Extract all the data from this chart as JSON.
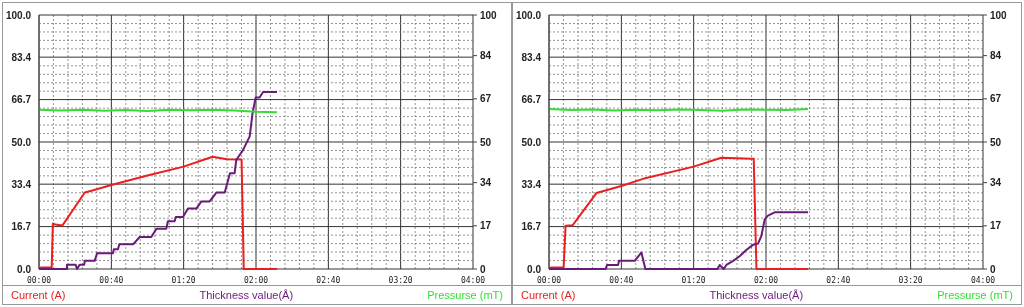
{
  "chart_data": [
    {
      "type": "line",
      "grid": true,
      "legend": "bottom",
      "line_style": "solid",
      "marker": "none",
      "xlim": [
        0,
        4
      ],
      "xticks": [
        {
          "value": 0,
          "label": "00:00"
        },
        {
          "value": 0.133,
          "label": null
        },
        {
          "value": 0.267,
          "label": null
        },
        {
          "value": 0.4,
          "label": null
        },
        {
          "value": 0.533,
          "label": null
        },
        {
          "value": 0.667,
          "label": "00:40"
        },
        {
          "value": 0.8,
          "label": null
        },
        {
          "value": 0.933,
          "label": null
        },
        {
          "value": 1.067,
          "label": null
        },
        {
          "value": 1.2,
          "label": null
        },
        {
          "value": 1.333,
          "label": "01:20"
        },
        {
          "value": 1.467,
          "label": null
        },
        {
          "value": 1.6,
          "label": null
        },
        {
          "value": 1.733,
          "label": null
        },
        {
          "value": 1.867,
          "label": null
        },
        {
          "value": 2,
          "label": "02:00"
        },
        {
          "value": 2.133,
          "label": null
        },
        {
          "value": 2.267,
          "label": null
        },
        {
          "value": 2.4,
          "label": null
        },
        {
          "value": 2.533,
          "label": null
        },
        {
          "value": 2.667,
          "label": "02:40"
        },
        {
          "value": 2.8,
          "label": null
        },
        {
          "value": 2.933,
          "label": null
        },
        {
          "value": 3.067,
          "label": null
        },
        {
          "value": 3.2,
          "label": null
        },
        {
          "value": 3.333,
          "label": "03:20"
        },
        {
          "value": 3.467,
          "label": null
        },
        {
          "value": 3.6,
          "label": null
        },
        {
          "value": 3.733,
          "label": null
        },
        {
          "value": 3.867,
          "label": null
        },
        {
          "value": 4,
          "label": "04:00"
        }
      ],
      "ylim": [
        0,
        100
      ],
      "yticks": [
        {
          "value": 0,
          "label": "0.0"
        },
        {
          "value": 3.33,
          "label": null
        },
        {
          "value": 6.67,
          "label": null
        },
        {
          "value": 10,
          "label": null
        },
        {
          "value": 13.33,
          "label": null
        },
        {
          "value": 16.7,
          "label": "16.7"
        },
        {
          "value": 20,
          "label": null
        },
        {
          "value": 23.33,
          "label": null
        },
        {
          "value": 26.67,
          "label": null
        },
        {
          "value": 30,
          "label": null
        },
        {
          "value": 33.4,
          "label": "33.4"
        },
        {
          "value": 36.67,
          "label": null
        },
        {
          "value": 40,
          "label": null
        },
        {
          "value": 43.33,
          "label": null
        },
        {
          "value": 46.67,
          "label": null
        },
        {
          "value": 50,
          "label": "50.0"
        },
        {
          "value": 53.33,
          "label": null
        },
        {
          "value": 56.67,
          "label": null
        },
        {
          "value": 60,
          "label": null
        },
        {
          "value": 63.33,
          "label": null
        },
        {
          "value": 66.7,
          "label": "66.7"
        },
        {
          "value": 70,
          "label": null
        },
        {
          "value": 73.33,
          "label": null
        },
        {
          "value": 76.67,
          "label": null
        },
        {
          "value": 80,
          "label": null
        },
        {
          "value": 83.4,
          "label": "83.4"
        },
        {
          "value": 86.67,
          "label": null
        },
        {
          "value": 90,
          "label": null
        },
        {
          "value": 93.33,
          "label": null
        },
        {
          "value": 96.67,
          "label": null
        },
        {
          "value": 100,
          "label": "100.0"
        }
      ],
      "y2lim": [
        0,
        100
      ],
      "y2ticks": [
        0,
        17,
        34,
        50,
        67,
        84,
        100
      ],
      "series": [
        {
          "name": "Current (A)",
          "color": "#e82020",
          "x": [
            0,
            0.017,
            0.117,
            0.128,
            0.15,
            0.215,
            0.422,
            0.5,
            0.667,
            1,
            1.333,
            1.6,
            1.733,
            1.867,
            1.887,
            2.193
          ],
          "values": [
            0,
            0.6,
            0.6,
            17.9,
            17.5,
            17.1,
            30.1,
            31,
            33.1,
            36.8,
            40.3,
            44.2,
            43.2,
            43.1,
            0,
            0
          ]
        },
        {
          "name": "Thickness value(Å)",
          "color": "#6a1b7a",
          "x": [
            0,
            0.258,
            0.258,
            0.338,
            0.35,
            0.375,
            0.417,
            0.422,
            0.513,
            0.535,
            0.682,
            0.69,
            0.728,
            0.74,
            0.867,
            0.928,
            1.035,
            1.082,
            1.173,
            1.188,
            1.25,
            1.26,
            1.327,
            1.373,
            1.45,
            1.497,
            1.573,
            1.635,
            1.712,
            1.76,
            1.803,
            1.818,
            1.88,
            1.942,
            1.967,
            1.997,
            2.033,
            2.065,
            2.193
          ],
          "values": [
            0,
            0,
            1.7,
            1.7,
            0,
            1.7,
            1.7,
            3.2,
            3.2,
            6.2,
            6.2,
            7.8,
            7.8,
            9.7,
            9.7,
            12.6,
            12.6,
            15.8,
            15.8,
            18.8,
            18.8,
            20.5,
            20.5,
            23.8,
            23.8,
            26.6,
            26.6,
            30.1,
            30.1,
            37.7,
            37.7,
            42.9,
            46.8,
            52.2,
            61,
            67.5,
            67.5,
            69.7,
            69.7
          ]
        },
        {
          "name": "Pressurse (mT)",
          "color": "#33dd33",
          "x": [
            0,
            0.2,
            0.4,
            0.6,
            0.8,
            1,
            1.2,
            1.4,
            1.6,
            1.8,
            2,
            2.193
          ],
          "values": [
            62.7,
            62.4,
            62.7,
            62.3,
            62.6,
            62.2,
            62.7,
            62.5,
            62.7,
            62.4,
            61.9,
            61.7
          ]
        }
      ]
    },
    {
      "type": "line",
      "grid": true,
      "legend": "bottom",
      "line_style": "solid",
      "marker": "none",
      "xlim": [
        0,
        4
      ],
      "xticks": [
        {
          "value": 0,
          "label": "00:00"
        },
        {
          "value": 0.133,
          "label": null
        },
        {
          "value": 0.267,
          "label": null
        },
        {
          "value": 0.4,
          "label": null
        },
        {
          "value": 0.533,
          "label": null
        },
        {
          "value": 0.667,
          "label": "00:40"
        },
        {
          "value": 0.8,
          "label": null
        },
        {
          "value": 0.933,
          "label": null
        },
        {
          "value": 1.067,
          "label": null
        },
        {
          "value": 1.2,
          "label": null
        },
        {
          "value": 1.333,
          "label": "01:20"
        },
        {
          "value": 1.467,
          "label": null
        },
        {
          "value": 1.6,
          "label": null
        },
        {
          "value": 1.733,
          "label": null
        },
        {
          "value": 1.867,
          "label": null
        },
        {
          "value": 2,
          "label": "02:00"
        },
        {
          "value": 2.133,
          "label": null
        },
        {
          "value": 2.267,
          "label": null
        },
        {
          "value": 2.4,
          "label": null
        },
        {
          "value": 2.533,
          "label": null
        },
        {
          "value": 2.667,
          "label": "02:40"
        },
        {
          "value": 2.8,
          "label": null
        },
        {
          "value": 2.933,
          "label": null
        },
        {
          "value": 3.067,
          "label": null
        },
        {
          "value": 3.2,
          "label": null
        },
        {
          "value": 3.333,
          "label": "03:20"
        },
        {
          "value": 3.467,
          "label": null
        },
        {
          "value": 3.6,
          "label": null
        },
        {
          "value": 3.733,
          "label": null
        },
        {
          "value": 3.867,
          "label": null
        },
        {
          "value": 4,
          "label": "04:00"
        }
      ],
      "ylim": [
        0,
        100
      ],
      "yticks": [
        {
          "value": 0,
          "label": "0.0"
        },
        {
          "value": 3.33,
          "label": null
        },
        {
          "value": 6.67,
          "label": null
        },
        {
          "value": 10,
          "label": null
        },
        {
          "value": 13.33,
          "label": null
        },
        {
          "value": 16.7,
          "label": "16.7"
        },
        {
          "value": 20,
          "label": null
        },
        {
          "value": 23.33,
          "label": null
        },
        {
          "value": 26.67,
          "label": null
        },
        {
          "value": 30,
          "label": null
        },
        {
          "value": 33.4,
          "label": "33.4"
        },
        {
          "value": 36.67,
          "label": null
        },
        {
          "value": 40,
          "label": null
        },
        {
          "value": 43.33,
          "label": null
        },
        {
          "value": 46.67,
          "label": null
        },
        {
          "value": 50,
          "label": "50.0"
        },
        {
          "value": 53.33,
          "label": null
        },
        {
          "value": 56.67,
          "label": null
        },
        {
          "value": 60,
          "label": null
        },
        {
          "value": 63.33,
          "label": null
        },
        {
          "value": 66.7,
          "label": "66.7"
        },
        {
          "value": 70,
          "label": null
        },
        {
          "value": 73.33,
          "label": null
        },
        {
          "value": 76.67,
          "label": null
        },
        {
          "value": 80,
          "label": null
        },
        {
          "value": 83.4,
          "label": "83.4"
        },
        {
          "value": 86.67,
          "label": null
        },
        {
          "value": 90,
          "label": null
        },
        {
          "value": 93.33,
          "label": null
        },
        {
          "value": 96.67,
          "label": null
        },
        {
          "value": 100,
          "label": "100.0"
        }
      ],
      "y2lim": [
        0,
        100
      ],
      "y2ticks": [
        0,
        17,
        34,
        50,
        67,
        84,
        100
      ],
      "series": [
        {
          "name": "Current (A)",
          "color": "#e82020",
          "x": [
            0,
            0.017,
            0.135,
            0.153,
            0.217,
            0.437,
            0.667,
            0.867,
            1.333,
            1.588,
            1.867,
            1.887,
            1.912,
            2.387
          ],
          "values": [
            0,
            0.6,
            0.6,
            17,
            17.2,
            29.9,
            32.7,
            35.5,
            40.3,
            43.8,
            43.4,
            43.4,
            0,
            0
          ]
        },
        {
          "name": "Thickness value(Å)",
          "color": "#6a1b7a",
          "x": [
            0,
            0.522,
            0.535,
            0.637,
            0.645,
            0.79,
            0.852,
            0.888,
            1.552,
            1.573,
            1.61,
            1.635,
            1.697,
            1.757,
            1.818,
            1.88,
            1.927,
            1.957,
            1.988,
            2.018,
            2.08,
            2.387
          ],
          "values": [
            0,
            0,
            1.6,
            1.6,
            3.2,
            3.2,
            6.5,
            0,
            0,
            1.6,
            0,
            1.6,
            3.2,
            5,
            7.5,
            9.5,
            10,
            13,
            19.5,
            21,
            22.3,
            22.3
          ]
        },
        {
          "name": "Pressurse (mT)",
          "color": "#33dd33",
          "x": [
            0,
            0.2,
            0.4,
            0.6,
            0.8,
            1,
            1.2,
            1.4,
            1.6,
            1.8,
            2,
            2.2,
            2.387
          ],
          "values": [
            63,
            62.6,
            62.8,
            62.4,
            62.7,
            62.5,
            62.8,
            62.6,
            62.3,
            62.8,
            62.7,
            62.6,
            63
          ]
        }
      ]
    }
  ]
}
